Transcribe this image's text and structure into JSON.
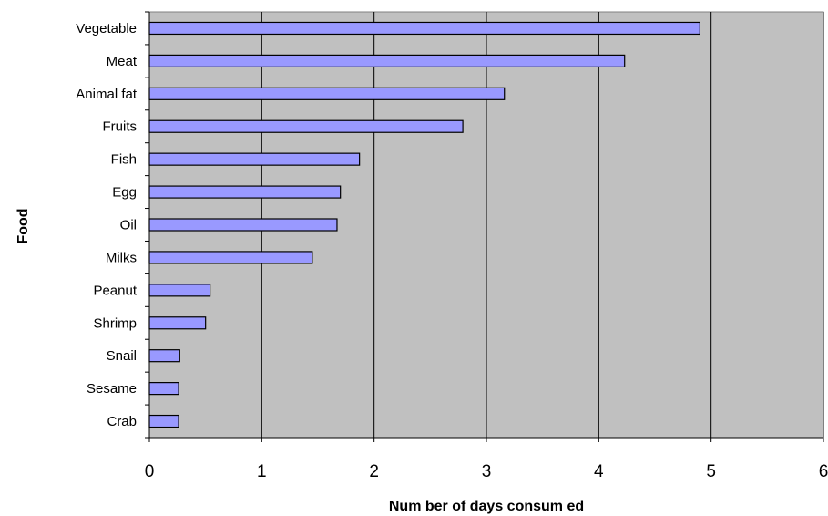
{
  "chart_data": {
    "type": "bar",
    "orientation": "horizontal",
    "categories": [
      "Vegetable",
      "Meat",
      "Animal fat",
      "Fruits",
      "Fish",
      "Egg",
      "Oil",
      "Milks",
      "Peanut",
      "Shrimp",
      "Snail",
      "Sesame",
      "Crab"
    ],
    "values": [
      4.9,
      4.23,
      3.16,
      2.79,
      1.87,
      1.7,
      1.67,
      1.45,
      0.54,
      0.5,
      0.27,
      0.26,
      0.26
    ],
    "xlabel": "Num ber of days consum ed",
    "ylabel": "Food",
    "xlim": [
      0,
      6
    ],
    "xticks": [
      "0",
      "1",
      "2",
      "3",
      "4",
      "5",
      "6"
    ],
    "grid": true,
    "colors": {
      "bar_fill": "#9999ff",
      "bar_stroke": "#000000",
      "plot_background": "#c0c0c0",
      "gridline": "#000000"
    }
  }
}
